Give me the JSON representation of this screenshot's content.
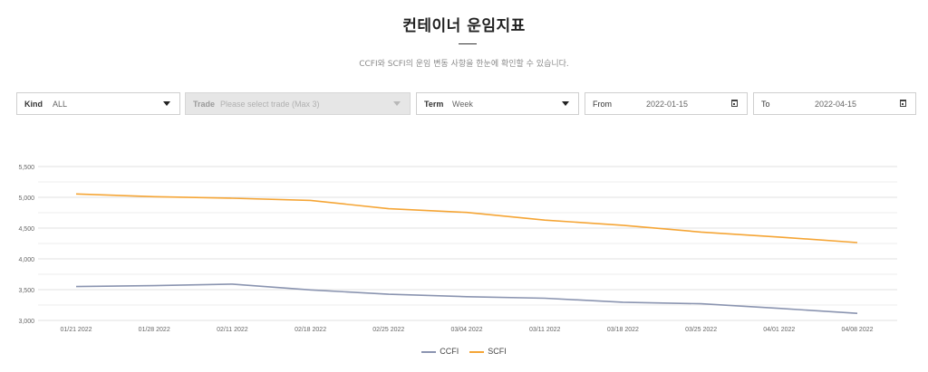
{
  "header": {
    "title": "컨테이너 운임지표",
    "subtitle": "CCFI와 SCFI의 운임 변동 사항을 한눈에 확인할 수 있습니다."
  },
  "filters": {
    "kind": {
      "label": "Kind",
      "value": "ALL",
      "icon": "chevron-down-icon"
    },
    "trade": {
      "label": "Trade",
      "placeholder": "Please select trade (Max 3)",
      "disabled": true,
      "icon": "chevron-down-icon"
    },
    "term": {
      "label": "Term",
      "value": "Week",
      "icon": "chevron-down-icon"
    },
    "from": {
      "label": "From",
      "value": "2022-01-15",
      "icon": "calendar-icon"
    },
    "to": {
      "label": "To",
      "value": "2022-04-15",
      "icon": "calendar-icon"
    }
  },
  "chart_data": {
    "type": "line",
    "title": "",
    "xlabel": "",
    "ylabel": "",
    "categories": [
      "01/21 2022",
      "01/28 2022",
      "02/11 2022",
      "02/18 2022",
      "02/25 2022",
      "03/04 2022",
      "03/11 2022",
      "03/18 2022",
      "03/25 2022",
      "04/01 2022",
      "04/08 2022"
    ],
    "ylim": [
      3000,
      5500
    ],
    "yticks": [
      3000,
      3500,
      4000,
      4500,
      5000,
      5500
    ],
    "ytick_labels": [
      "3,000",
      "3,500",
      "4,000",
      "4,500",
      "5,000",
      "5,500"
    ],
    "grid": true,
    "legend_position": "bottom-center",
    "series": [
      {
        "name": "CCFI",
        "color": "#8a94b0",
        "values": [
          3550,
          3565,
          3590,
          3495,
          3425,
          3385,
          3360,
          3295,
          3270,
          3195,
          3115
        ]
      },
      {
        "name": "SCFI",
        "color": "#f5a535",
        "values": [
          5055,
          5010,
          4985,
          4950,
          4815,
          4755,
          4630,
          4545,
          4435,
          4355,
          4265
        ]
      }
    ]
  }
}
